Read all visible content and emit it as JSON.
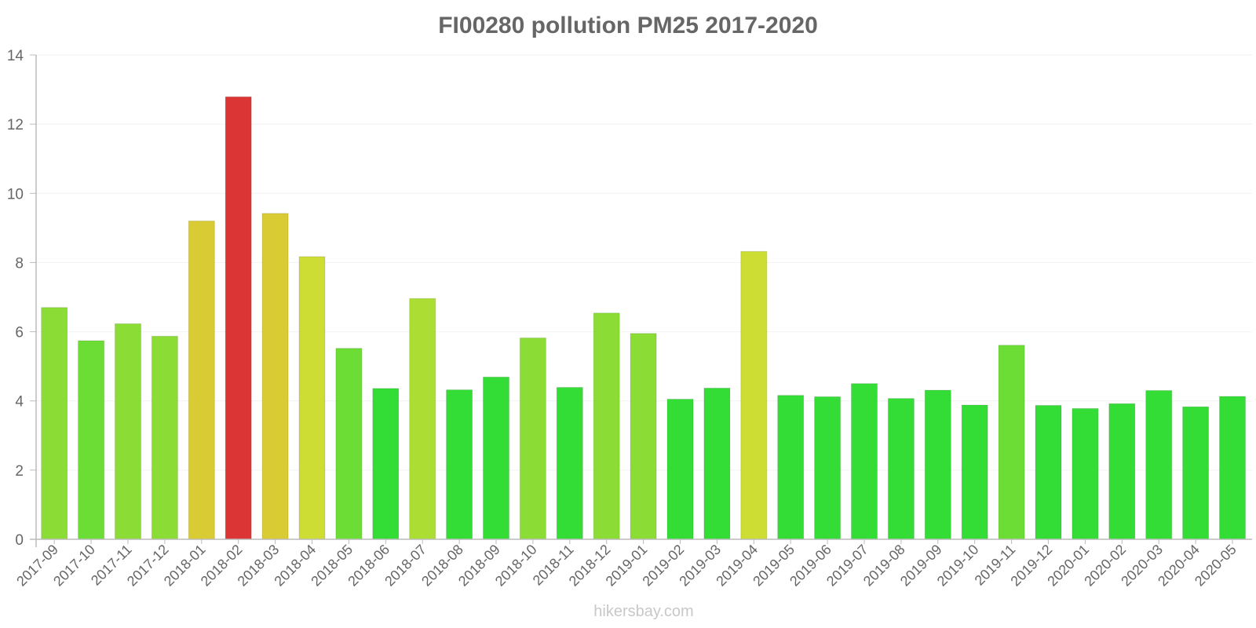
{
  "title": "FI00280 pollution PM25 2017-2020",
  "watermark": "hikersbay.com",
  "colors": {
    "axis": "#bbbbbb",
    "grid": "#f2f2f2",
    "tick_text": "#666666",
    "title_text": "#666666",
    "watermark_text": "#c8c8c8"
  },
  "chart_data": {
    "type": "bar",
    "title": "FI00280 pollution PM25 2017-2020",
    "xlabel": "",
    "ylabel": "",
    "ylim": [
      0,
      14
    ],
    "yticks": [
      0,
      2,
      4,
      6,
      8,
      10,
      12,
      14
    ],
    "grid": true,
    "legend": null,
    "categories": [
      "2017-09",
      "2017-10",
      "2017-11",
      "2017-12",
      "2018-01",
      "2018-02",
      "2018-03",
      "2018-04",
      "2018-05",
      "2018-06",
      "2018-07",
      "2018-08",
      "2018-09",
      "2018-10",
      "2018-11",
      "2018-12",
      "2019-01",
      "2019-02",
      "2019-03",
      "2019-04",
      "2019-05",
      "2019-06",
      "2019-07",
      "2019-08",
      "2019-09",
      "2019-10",
      "2019-11",
      "2019-12",
      "2020-01",
      "2020-02",
      "2020-03",
      "2020-04",
      "2020-05"
    ],
    "values": [
      6.7,
      5.74,
      6.23,
      5.87,
      9.2,
      12.79,
      9.42,
      8.17,
      5.52,
      4.36,
      6.96,
      4.32,
      4.69,
      5.82,
      4.39,
      6.54,
      5.95,
      4.05,
      4.37,
      8.32,
      4.16,
      4.12,
      4.5,
      4.07,
      4.31,
      3.88,
      5.61,
      3.87,
      3.78,
      3.92,
      4.3,
      3.83,
      4.13
    ],
    "bar_colors": [
      "#8bdd35",
      "#6bdd35",
      "#8bdd35",
      "#8bdd35",
      "#d9cb33",
      "#dc3535",
      "#d9cb33",
      "#cddd33",
      "#6bdd35",
      "#33dd35",
      "#acdd33",
      "#33dd35",
      "#33dd35",
      "#8bdd35",
      "#33dd35",
      "#8bdd35",
      "#8bdd35",
      "#33dd35",
      "#33dd35",
      "#cddd33",
      "#33dd35",
      "#33dd35",
      "#33dd35",
      "#33dd35",
      "#33dd35",
      "#33dd35",
      "#6bdd35",
      "#33dd35",
      "#33dd35",
      "#33dd35",
      "#33dd35",
      "#33dd35",
      "#33dd35"
    ]
  }
}
